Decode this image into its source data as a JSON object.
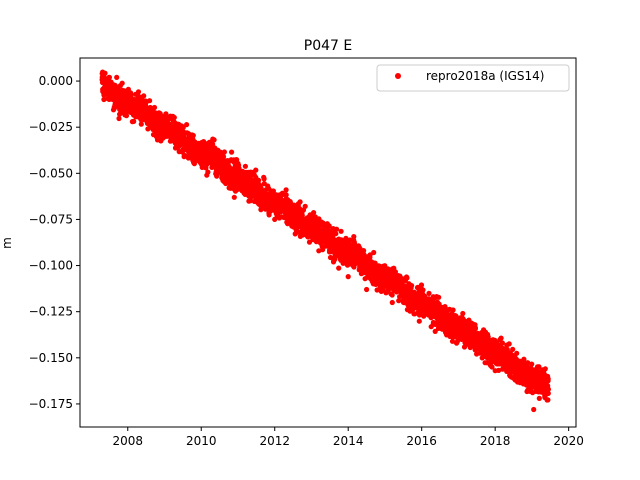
{
  "chart_data": {
    "type": "scatter",
    "title": "P047 E",
    "xlabel": "",
    "ylabel": "m",
    "xlim": [
      2006.7,
      2020.2
    ],
    "ylim": [
      -0.1875,
      0.0125
    ],
    "xticks": [
      2008,
      2010,
      2012,
      2014,
      2016,
      2018,
      2020
    ],
    "yticks": [
      0.0,
      -0.025,
      -0.05,
      -0.075,
      -0.1,
      -0.125,
      -0.15,
      -0.175
    ],
    "xtick_labels": [
      "2008",
      "2010",
      "2012",
      "2014",
      "2016",
      "2018",
      "2020"
    ],
    "ytick_labels": [
      "0.000",
      "−0.025",
      "−0.050",
      "−0.075",
      "−0.100",
      "−0.125",
      "−0.150",
      "−0.175"
    ],
    "grid": false,
    "legend": {
      "position": "top-right"
    },
    "series": [
      {
        "name": "repro2018a (IGS14)",
        "color": "#ff0000",
        "marker": "dot",
        "trend": {
          "x_start": 2007.3,
          "y_start": -0.002,
          "x_end": 2019.45,
          "y_end": -0.167,
          "noise_sd": 0.0035,
          "count": 4000
        },
        "points": [
          [
            2007.35,
            0.003
          ],
          [
            2007.5,
            0.002
          ],
          [
            2007.7,
            0.002
          ],
          [
            2007.35,
            -0.01
          ],
          [
            2007.5,
            -0.008
          ],
          [
            2008.7,
            -0.029
          ],
          [
            2009.45,
            -0.032
          ],
          [
            2009.9,
            -0.043
          ],
          [
            2010.15,
            -0.051
          ],
          [
            2010.6,
            -0.048
          ],
          [
            2010.9,
            -0.063
          ],
          [
            2011.45,
            -0.058
          ],
          [
            2011.7,
            -0.066
          ],
          [
            2012.0,
            -0.075
          ],
          [
            2012.5,
            -0.071
          ],
          [
            2012.75,
            -0.081
          ],
          [
            2013.1,
            -0.079
          ],
          [
            2013.2,
            -0.092
          ],
          [
            2013.6,
            -0.098
          ],
          [
            2014.0,
            -0.106
          ],
          [
            2014.5,
            -0.113
          ],
          [
            2014.9,
            -0.114
          ],
          [
            2015.2,
            -0.12
          ],
          [
            2015.6,
            -0.118
          ],
          [
            2016.3,
            -0.121
          ],
          [
            2016.8,
            -0.135
          ],
          [
            2017.2,
            -0.141
          ],
          [
            2017.6,
            -0.14
          ],
          [
            2018.0,
            -0.157
          ],
          [
            2018.4,
            -0.148
          ],
          [
            2018.7,
            -0.154
          ],
          [
            2019.05,
            -0.178
          ],
          [
            2019.2,
            -0.172
          ],
          [
            2019.35,
            -0.171
          ],
          [
            2019.4,
            -0.163
          ]
        ]
      }
    ]
  }
}
